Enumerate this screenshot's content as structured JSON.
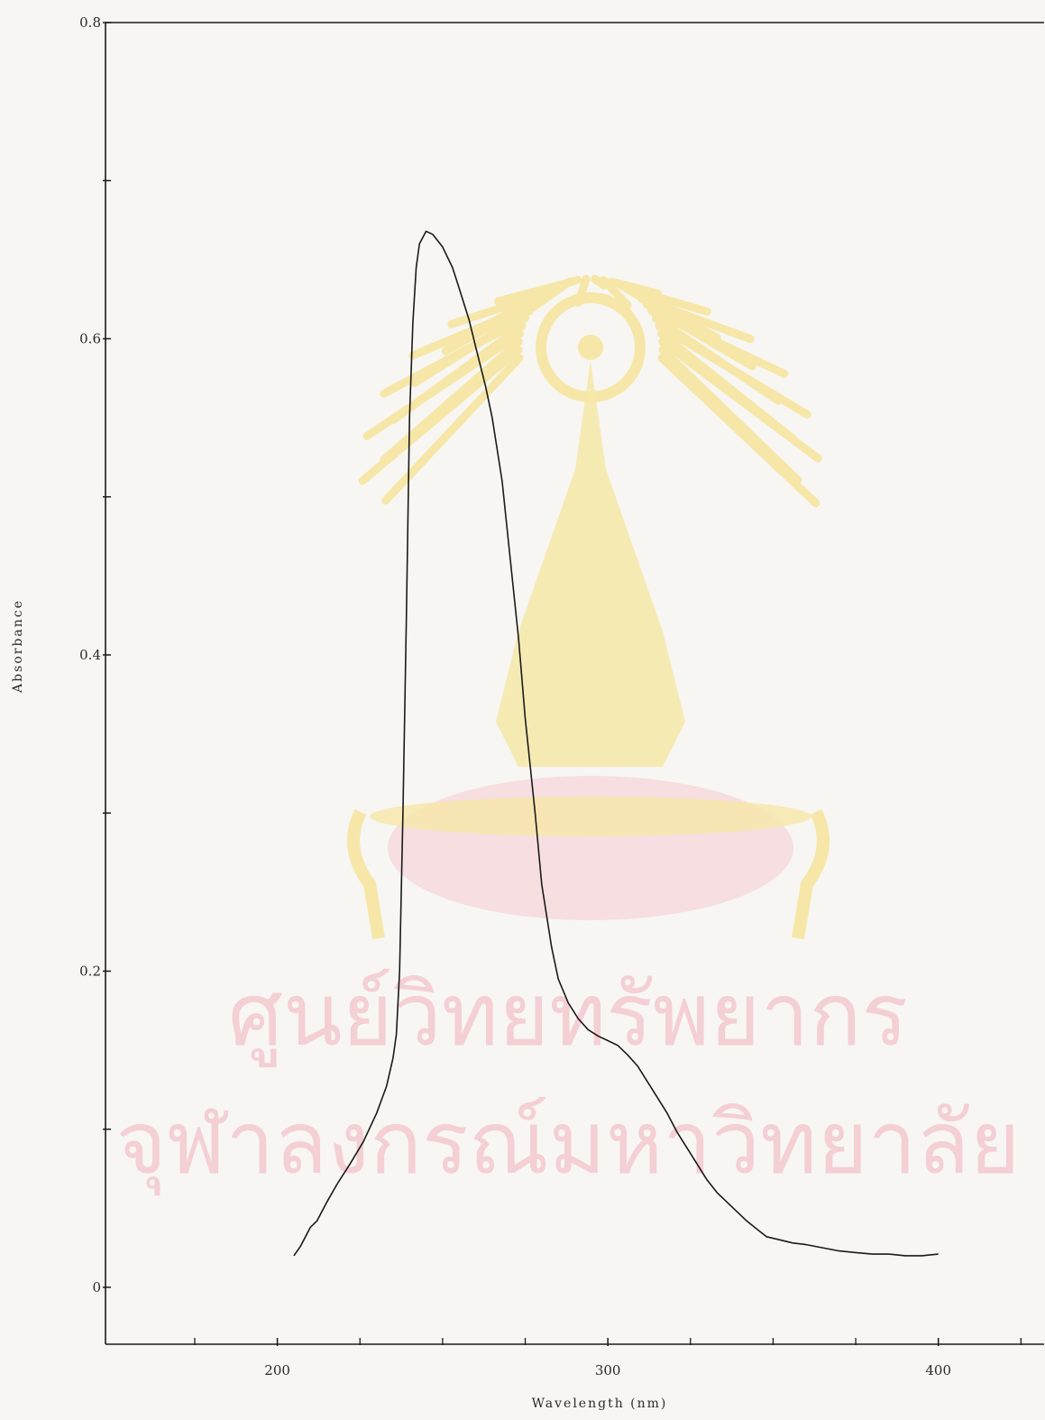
{
  "watermark": {
    "line1": "ศูนย์วิทยทรัพยากร",
    "line2": "จุฬาลงกรณ์มหาวิทยาลัย",
    "emblem": "university-crest",
    "crest_color": "#f6e7a8",
    "text_color": "#f4cfd4"
  },
  "chart_data": {
    "type": "line",
    "xlabel": "Wavelength (nm)",
    "ylabel": "Absorbance",
    "xlim": [
      148,
      432
    ],
    "ylim": [
      -0.036,
      0.8
    ],
    "x_ticks": [
      {
        "value": 200,
        "label": "200"
      },
      {
        "value": 300,
        "label": "300"
      },
      {
        "value": 400,
        "label": "400"
      }
    ],
    "y_ticks": [
      {
        "value": 0,
        "label": "0"
      },
      {
        "value": 0.2,
        "label": "0.2"
      },
      {
        "value": 0.4,
        "label": "0.4"
      },
      {
        "value": 0.6,
        "label": "0.6"
      },
      {
        "value": 0.8,
        "label": "0.8"
      }
    ],
    "x_minor_ticks": [
      175,
      225,
      250,
      275,
      325,
      350,
      375,
      425
    ],
    "y_minor_ticks": [
      0.1,
      0.3,
      0.5,
      0.7
    ],
    "grid": false,
    "line_color": "#1a1a1a",
    "series": [
      {
        "x": [
          205,
          207,
          210,
          212,
          215,
          218,
          222,
          226,
          230,
          233,
          235,
          236,
          237,
          238,
          239,
          240,
          241,
          242,
          243,
          245,
          247,
          250,
          253,
          255,
          258,
          260,
          263,
          265,
          268,
          270,
          273,
          275,
          278,
          280,
          283,
          285,
          288,
          291,
          294,
          297,
          300,
          303,
          306,
          309,
          312,
          315,
          318,
          321,
          324,
          327,
          330,
          333,
          336,
          339,
          342,
          345,
          348,
          352,
          356,
          360,
          365,
          370,
          375,
          380,
          385,
          390,
          395,
          400
        ],
        "y": [
          0.02,
          0.026,
          0.038,
          0.042,
          0.054,
          0.065,
          0.078,
          0.092,
          0.11,
          0.127,
          0.145,
          0.16,
          0.2,
          0.3,
          0.42,
          0.55,
          0.61,
          0.645,
          0.66,
          0.668,
          0.666,
          0.658,
          0.645,
          0.632,
          0.612,
          0.595,
          0.57,
          0.55,
          0.51,
          0.47,
          0.41,
          0.36,
          0.3,
          0.255,
          0.215,
          0.195,
          0.18,
          0.17,
          0.163,
          0.159,
          0.156,
          0.153,
          0.147,
          0.14,
          0.13,
          0.12,
          0.11,
          0.098,
          0.088,
          0.078,
          0.068,
          0.06,
          0.054,
          0.048,
          0.042,
          0.037,
          0.032,
          0.03,
          0.028,
          0.027,
          0.025,
          0.023,
          0.022,
          0.021,
          0.021,
          0.02,
          0.02,
          0.021
        ]
      }
    ]
  }
}
